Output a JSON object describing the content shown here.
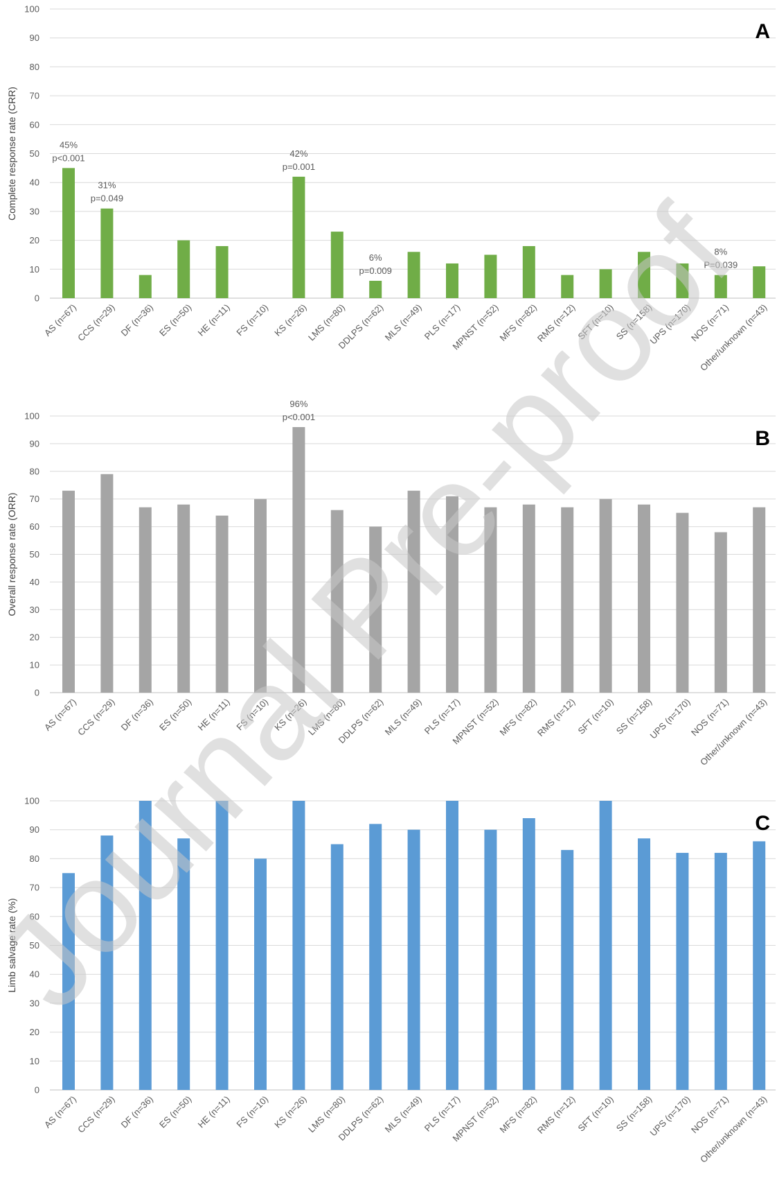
{
  "watermark": "Journal Pre-proof",
  "chart_data": [
    {
      "type": "bar",
      "panel_label": "A",
      "ylabel": "Complete response rate (CRR)",
      "ylim": [
        0,
        100
      ],
      "yticks": [
        0,
        10,
        20,
        30,
        40,
        50,
        60,
        70,
        80,
        90,
        100
      ],
      "grid": true,
      "color": "#70ad47",
      "categories": [
        "AS (n=67)",
        "CCS (n=29)",
        "DF (n=36)",
        "ES (n=50)",
        "HE (n=11)",
        "FS (n=10)",
        "KS (n=26)",
        "LMS (n=80)",
        "DDLPS (n=62)",
        "MLS (n=49)",
        "PLS (n=17)",
        "MPNST (n=52)",
        "MFS (n=82)",
        "RMS (n=12)",
        "SFT (n=10)",
        "SS (n=158)",
        "UPS (n=170)",
        "NOS (n=71)",
        "Other/unknown (n=43)"
      ],
      "values": [
        45,
        31,
        8,
        20,
        18,
        0,
        42,
        23,
        6,
        16,
        12,
        15,
        18,
        8,
        10,
        16,
        12,
        8,
        11
      ],
      "annotations": [
        {
          "index": 0,
          "lines": [
            "45%",
            "p<0.001"
          ]
        },
        {
          "index": 1,
          "lines": [
            "31%",
            "p=0.049"
          ]
        },
        {
          "index": 6,
          "lines": [
            "42%",
            "p=0.001"
          ]
        },
        {
          "index": 8,
          "lines": [
            "6%",
            "p=0.009"
          ]
        },
        {
          "index": 17,
          "lines": [
            "8%",
            "P=0.039"
          ]
        }
      ]
    },
    {
      "type": "bar",
      "panel_label": "B",
      "ylabel": "Overall response rate (ORR)",
      "ylim": [
        0,
        100
      ],
      "yticks": [
        0,
        10,
        20,
        30,
        40,
        50,
        60,
        70,
        80,
        90,
        100
      ],
      "grid": true,
      "color": "#a5a5a5",
      "categories": [
        "AS (n=67)",
        "CCS (n=29)",
        "DF (n=36)",
        "ES (n=50)",
        "HE (n=11)",
        "FS (n=10)",
        "KS (n=26)",
        "LMS (n=80)",
        "DDLPS (n=62)",
        "MLS (n=49)",
        "PLS (n=17)",
        "MPNST (n=52)",
        "MFS (n=82)",
        "RMS (n=12)",
        "SFT (n=10)",
        "SS (n=158)",
        "UPS (n=170)",
        "NOS (n=71)",
        "Other/unknown (n=43)"
      ],
      "values": [
        73,
        79,
        67,
        68,
        64,
        70,
        96,
        66,
        60,
        73,
        71,
        67,
        68,
        67,
        70,
        68,
        65,
        58,
        67
      ],
      "annotations": [
        {
          "index": 6,
          "lines": [
            "96%",
            "p<0.001"
          ]
        }
      ]
    },
    {
      "type": "bar",
      "panel_label": "C",
      "ylabel": "Limb salvage rate (%)",
      "ylim": [
        0,
        100
      ],
      "yticks": [
        0,
        10,
        20,
        30,
        40,
        50,
        60,
        70,
        80,
        90,
        100
      ],
      "grid": true,
      "color": "#5b9bd5",
      "categories": [
        "AS (n=67)",
        "CCS (n=29)",
        "DF (n=36)",
        "ES (n=50)",
        "HE (n=11)",
        "FS (n=10)",
        "KS (n=26)",
        "LMS (n=80)",
        "DDLPS (n=62)",
        "MLS (n=49)",
        "PLS (n=17)",
        "MPNST (n=52)",
        "MFS (n=82)",
        "RMS (n=12)",
        "SFT (n=10)",
        "SS (n=158)",
        "UPS (n=170)",
        "NOS (n=71)",
        "Other/unknown (n=43)"
      ],
      "values": [
        75,
        88,
        100,
        87,
        100,
        80,
        100,
        85,
        92,
        90,
        100,
        90,
        94,
        83,
        100,
        87,
        82,
        82,
        86
      ],
      "annotations": []
    }
  ]
}
